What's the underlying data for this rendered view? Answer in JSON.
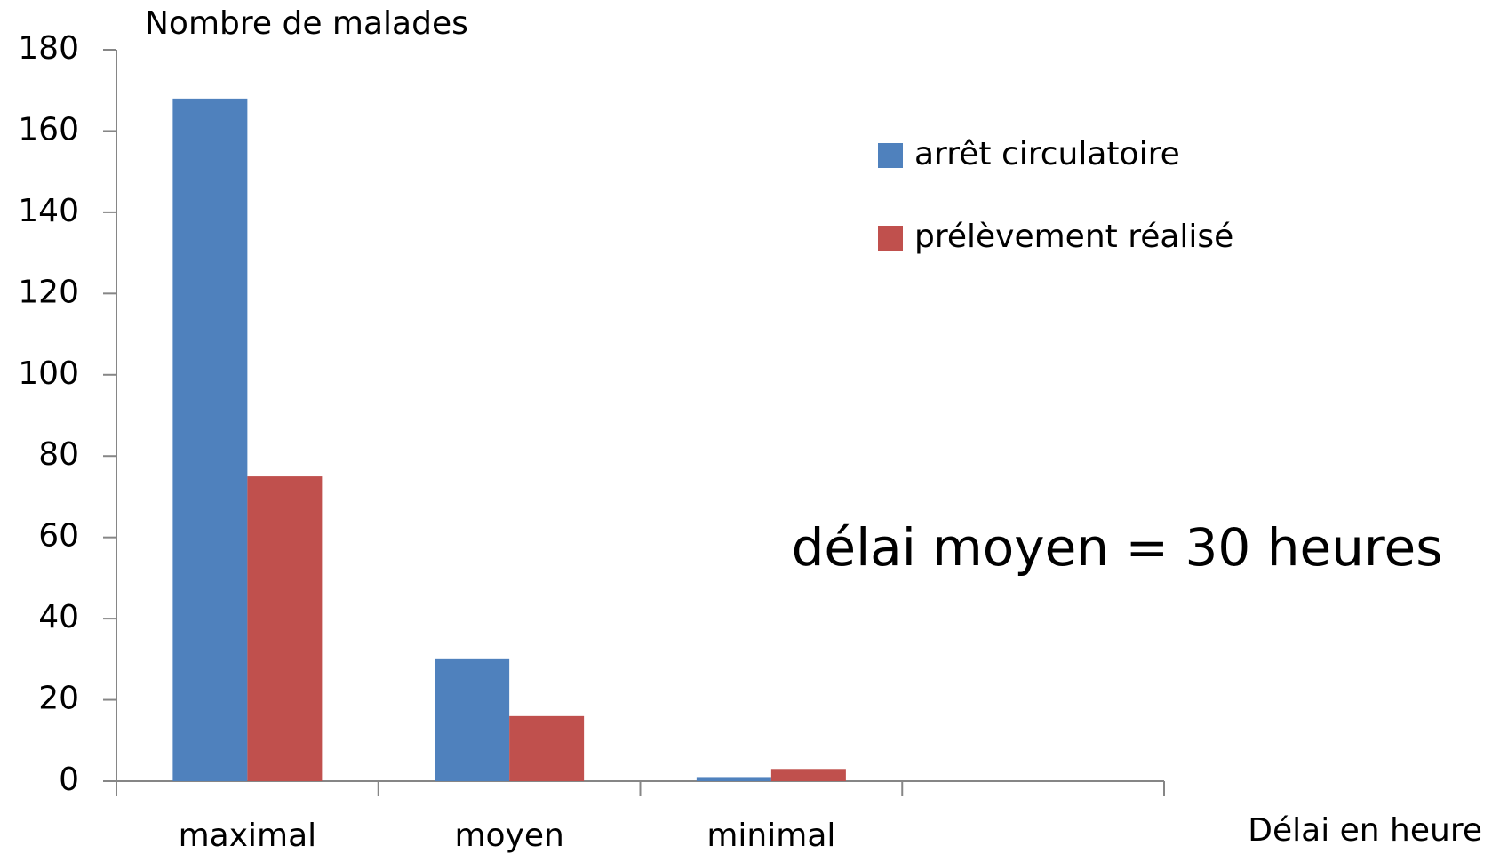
{
  "chart_data": {
    "type": "bar",
    "title": "Nombre de malades",
    "x_label": "Délai en heure",
    "annotation": "délai moyen = 30 heures",
    "categories": [
      "maximal",
      "moyen",
      "minimal",
      null
    ],
    "series": [
      {
        "name": "arrêt circulatoire",
        "color": "#4f81bd",
        "values": [
          168,
          30,
          1,
          null
        ]
      },
      {
        "name": "prélèvement réalisé",
        "color": "#c0504d",
        "values": [
          75,
          16,
          3,
          null
        ]
      }
    ],
    "ylim": [
      0,
      180
    ],
    "yticks": [
      0,
      20,
      40,
      60,
      80,
      100,
      120,
      140,
      160,
      180
    ],
    "legend": "upper right",
    "grid": false
  }
}
